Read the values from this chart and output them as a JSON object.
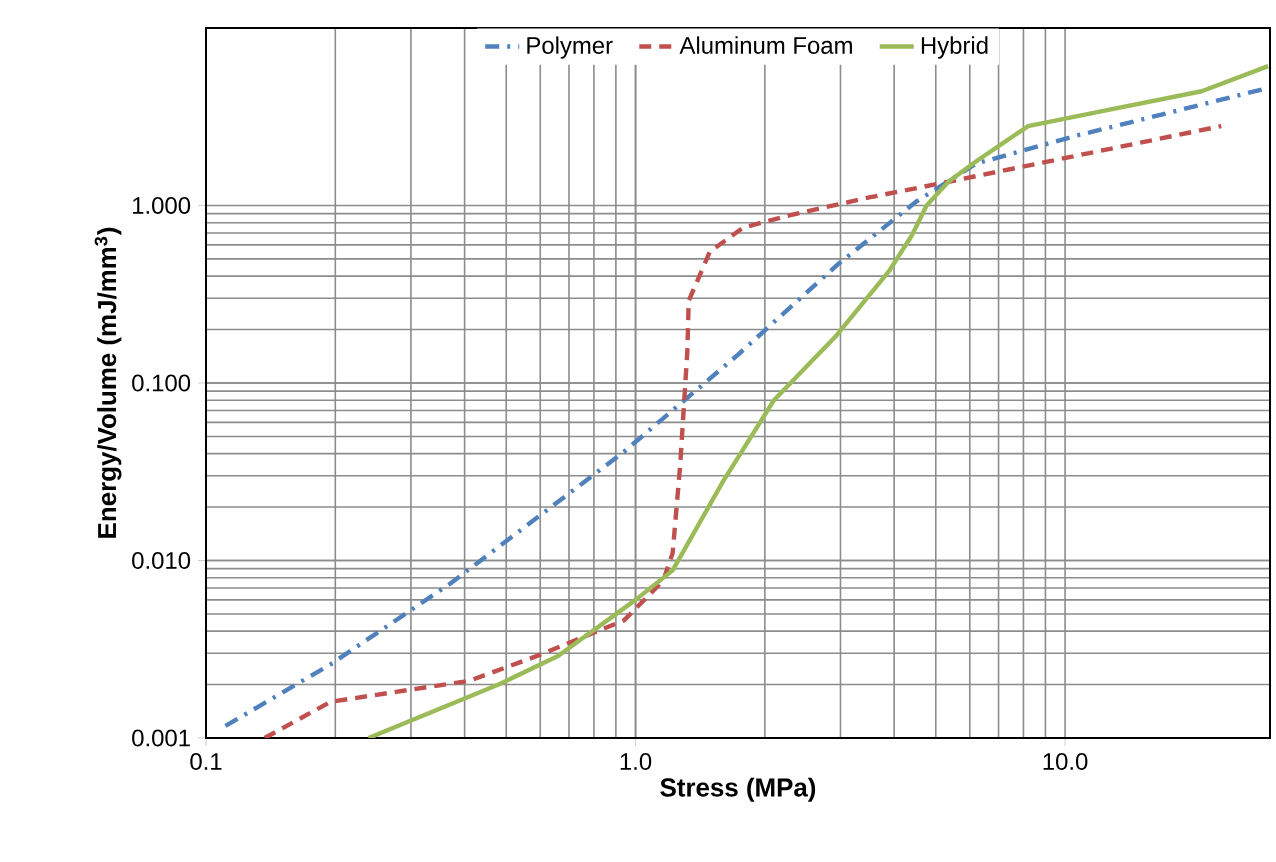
{
  "chart_data": {
    "type": "line",
    "xlabel": "Stress (MPa)",
    "ylabel": "Energy/Volume (mJ/mm$^{3}$)",
    "log": "xy",
    "grid": true,
    "legend": "top",
    "xlim": [
      0.1,
      30
    ],
    "ylim": [
      0.001,
      10
    ],
    "xticks": [
      0.1,
      {
        "value": 1,
        "label": "1.0"
      },
      {
        "value": 10,
        "label": "10.0"
      }
    ],
    "yticks": [
      0.001,
      {
        "value": 0.01,
        "label": "0.010"
      },
      {
        "value": 0.1,
        "label": "0.100"
      },
      {
        "value": 1,
        "label": "1.000"
      }
    ],
    "series": [
      {
        "name": "Polymer",
        "color": "#4f81bd",
        "line_style": "dashdot",
        "x": [
          0.111,
          0.195,
          0.37,
          0.94,
          1.73,
          2.97,
          4.5,
          6.2,
          10.6,
          15.5,
          28.7
        ],
        "values": [
          0.00117,
          0.0026,
          0.0074,
          0.041,
          0.144,
          0.47,
          1.05,
          1.72,
          2.47,
          3.1,
          4.5
        ]
      },
      {
        "name": "Aluminum Foam",
        "color": "#c0504d",
        "line_style": "dashed",
        "x": [
          0.137,
          0.195,
          0.41,
          0.59,
          0.94,
          1.16,
          1.22,
          1.27,
          1.32,
          1.33,
          1.49,
          1.78,
          2.28,
          3.5,
          5.35,
          10.1,
          23.1
        ],
        "values": [
          0.001,
          0.0016,
          0.0021,
          0.0029,
          0.0046,
          0.0077,
          0.011,
          0.034,
          0.15,
          0.29,
          0.55,
          0.75,
          0.88,
          1.11,
          1.36,
          1.86,
          2.8
        ]
      },
      {
        "name": "Hybrid",
        "color": "#9bbb59",
        "line_style": "solid",
        "x": [
          0.239,
          0.48,
          0.66,
          1.0,
          1.22,
          1.6,
          2.1,
          2.94,
          3.9,
          4.4,
          4.76,
          5.35,
          6.2,
          8.2,
          12.2,
          20.8,
          29.7
        ],
        "values": [
          0.001,
          0.002,
          0.0029,
          0.006,
          0.0088,
          0.028,
          0.08,
          0.186,
          0.43,
          0.68,
          1.0,
          1.36,
          1.77,
          2.8,
          3.4,
          4.4,
          6.1
        ]
      }
    ]
  }
}
